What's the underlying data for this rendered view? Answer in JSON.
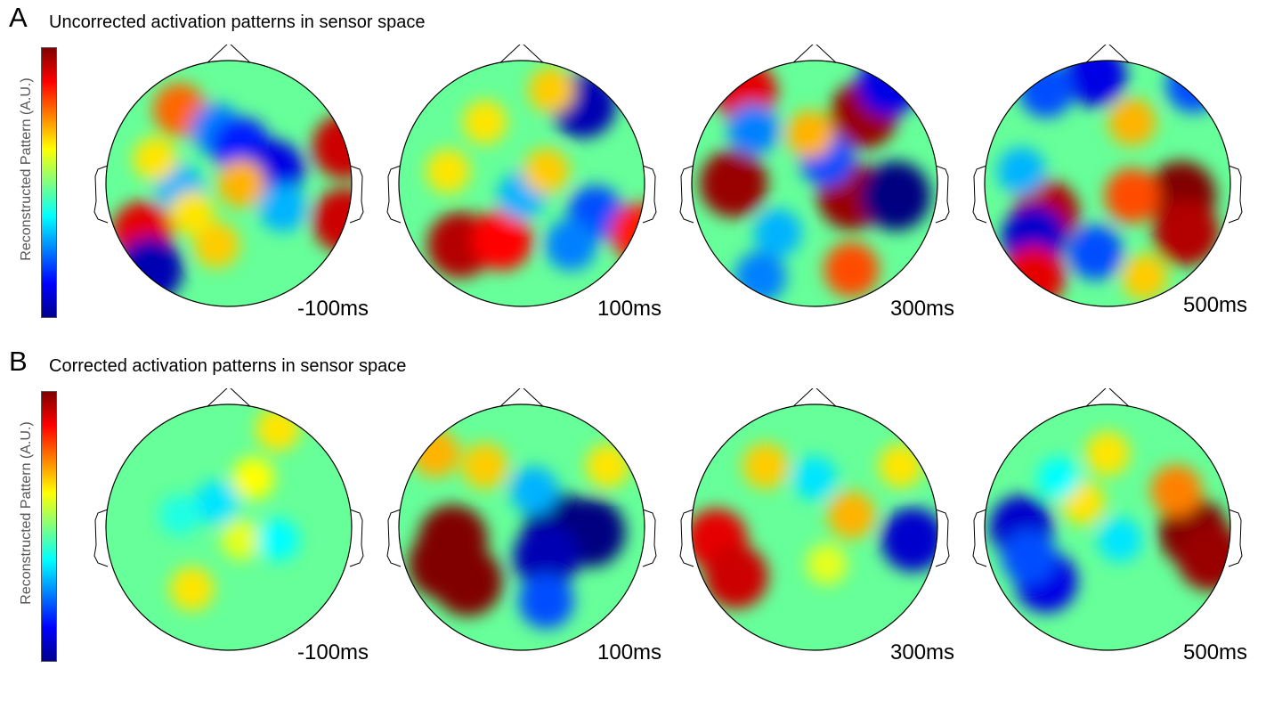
{
  "panels": [
    {
      "letter": "A",
      "title": "Uncorrected activation patterns in sensor space",
      "colorbar_label": "Reconstructed Pattern (A.U.)",
      "maps": [
        {
          "time": "-100ms",
          "blobs": [
            {
              "u": 0.3,
              "v": 0.2,
              "v2": 0.55
            },
            {
              "u": 0.45,
              "v": 0.28,
              "v2": -0.5
            },
            {
              "u": 0.55,
              "v": 0.35,
              "v2": -0.7
            },
            {
              "u": 0.68,
              "v": 0.45,
              "v2": -0.8
            },
            {
              "u": 0.3,
              "v": 0.52,
              "v2": -0.4
            },
            {
              "u": 0.2,
              "v": 0.4,
              "v2": 0.3
            },
            {
              "u": 0.55,
              "v": 0.5,
              "v2": 0.4
            },
            {
              "u": 0.97,
              "v": 0.35,
              "v2": 0.85
            },
            {
              "u": 0.97,
              "v": 0.65,
              "v2": 0.85
            },
            {
              "u": 0.15,
              "v": 0.7,
              "v2": 0.8
            },
            {
              "u": 0.18,
              "v": 0.85,
              "v2": -0.9
            },
            {
              "u": 0.45,
              "v": 0.75,
              "v2": 0.35
            },
            {
              "u": 0.35,
              "v": 0.62,
              "v2": 0.3
            },
            {
              "u": 0.72,
              "v": 0.6,
              "v2": -0.4
            }
          ]
        },
        {
          "time": "100ms",
          "blobs": [
            {
              "u": 0.75,
              "v": 0.18,
              "v2": -0.9
            },
            {
              "u": 0.62,
              "v": 0.12,
              "v2": 0.35
            },
            {
              "u": 0.35,
              "v": 0.25,
              "v2": 0.3
            },
            {
              "u": 0.25,
              "v": 0.75,
              "v2": 0.9
            },
            {
              "u": 0.42,
              "v": 0.73,
              "v2": 0.75
            },
            {
              "u": 0.8,
              "v": 0.62,
              "v2": -0.6
            },
            {
              "u": 0.7,
              "v": 0.75,
              "v2": -0.5
            },
            {
              "u": 0.5,
              "v": 0.55,
              "v2": -0.4
            },
            {
              "u": 0.6,
              "v": 0.45,
              "v2": 0.35
            },
            {
              "u": 0.98,
              "v": 0.7,
              "v2": 0.7
            },
            {
              "u": 0.2,
              "v": 0.45,
              "v2": 0.3
            }
          ]
        },
        {
          "time": "300ms",
          "blobs": [
            {
              "u": 0.22,
              "v": 0.13,
              "v2": 0.8
            },
            {
              "u": 0.7,
              "v": 0.22,
              "v2": 0.95
            },
            {
              "u": 0.8,
              "v": 0.1,
              "v2": -0.8
            },
            {
              "u": 0.17,
              "v": 0.5,
              "v2": 0.95
            },
            {
              "u": 0.65,
              "v": 0.55,
              "v2": 0.95
            },
            {
              "u": 0.83,
              "v": 0.55,
              "v2": -1.0
            },
            {
              "u": 0.25,
              "v": 0.28,
              "v2": -0.5
            },
            {
              "u": 0.55,
              "v": 0.4,
              "v2": -0.6
            },
            {
              "u": 0.35,
              "v": 0.7,
              "v2": -0.4
            },
            {
              "u": 0.65,
              "v": 0.85,
              "v2": 0.6
            },
            {
              "u": 0.28,
              "v": 0.88,
              "v2": -0.5
            },
            {
              "u": 0.48,
              "v": 0.3,
              "v2": 0.4
            }
          ]
        },
        {
          "time": "500ms",
          "blobs": [
            {
              "u": 0.45,
              "v": 0.06,
              "v2": -0.8
            },
            {
              "u": 0.25,
              "v": 0.12,
              "v2": -0.6
            },
            {
              "u": 0.85,
              "v": 0.1,
              "v2": -0.6
            },
            {
              "u": 0.8,
              "v": 0.55,
              "v2": 1.0
            },
            {
              "u": 0.82,
              "v": 0.7,
              "v2": 0.9
            },
            {
              "u": 0.25,
              "v": 0.62,
              "v2": 0.9
            },
            {
              "u": 0.2,
              "v": 0.72,
              "v2": -0.85
            },
            {
              "u": 0.45,
              "v": 0.78,
              "v2": -0.6
            },
            {
              "u": 0.6,
              "v": 0.55,
              "v2": 0.6
            },
            {
              "u": 0.2,
              "v": 0.88,
              "v2": 0.8
            },
            {
              "u": 0.6,
              "v": 0.25,
              "v2": 0.4
            },
            {
              "u": 0.15,
              "v": 0.45,
              "v2": -0.4
            },
            {
              "u": 0.65,
              "v": 0.88,
              "v2": 0.35
            }
          ]
        }
      ]
    },
    {
      "letter": "B",
      "title": "Corrected activation patterns in sensor space",
      "colorbar_label": "Reconstructed Pattern (A.U.)",
      "maps": [
        {
          "time": "-100ms",
          "blobs": [
            {
              "u": 0.45,
              "v": 0.4,
              "v2": -0.3
            },
            {
              "u": 0.6,
              "v": 0.3,
              "v2": 0.25
            },
            {
              "u": 0.55,
              "v": 0.55,
              "v2": 0.2
            },
            {
              "u": 0.7,
              "v": 0.55,
              "v2": -0.25
            },
            {
              "u": 0.35,
              "v": 0.75,
              "v2": 0.3
            },
            {
              "u": 0.7,
              "v": 0.1,
              "v2": 0.3
            },
            {
              "u": 0.3,
              "v": 0.45,
              "v2": -0.2
            }
          ]
        },
        {
          "time": "100ms",
          "blobs": [
            {
              "u": 0.22,
              "v": 0.55,
              "v2": 1.0
            },
            {
              "u": 0.28,
              "v": 0.72,
              "v2": 1.0
            },
            {
              "u": 0.18,
              "v": 0.65,
              "v2": 1.0
            },
            {
              "u": 0.65,
              "v": 0.5,
              "v2": -1.0
            },
            {
              "u": 0.78,
              "v": 0.52,
              "v2": -1.0
            },
            {
              "u": 0.6,
              "v": 0.62,
              "v2": -0.9
            },
            {
              "u": 0.35,
              "v": 0.25,
              "v2": 0.35
            },
            {
              "u": 0.15,
              "v": 0.2,
              "v2": 0.4
            },
            {
              "u": 0.85,
              "v": 0.25,
              "v2": 0.3
            },
            {
              "u": 0.55,
              "v": 0.35,
              "v2": -0.4
            },
            {
              "u": 0.6,
              "v": 0.8,
              "v2": -0.6
            }
          ]
        },
        {
          "time": "300ms",
          "blobs": [
            {
              "u": 0.1,
              "v": 0.55,
              "v2": 0.8
            },
            {
              "u": 0.18,
              "v": 0.7,
              "v2": 0.85
            },
            {
              "u": 0.9,
              "v": 0.55,
              "v2": -0.85
            },
            {
              "u": 0.3,
              "v": 0.25,
              "v2": 0.35
            },
            {
              "u": 0.65,
              "v": 0.45,
              "v2": 0.4
            },
            {
              "u": 0.5,
              "v": 0.3,
              "v2": -0.3
            },
            {
              "u": 0.55,
              "v": 0.65,
              "v2": 0.2
            },
            {
              "u": 0.85,
              "v": 0.25,
              "v2": 0.3
            }
          ]
        },
        {
          "time": "500ms",
          "blobs": [
            {
              "u": 0.85,
              "v": 0.52,
              "v2": 1.0
            },
            {
              "u": 0.92,
              "v": 0.62,
              "v2": 0.95
            },
            {
              "u": 0.78,
              "v": 0.35,
              "v2": 0.5
            },
            {
              "u": 0.15,
              "v": 0.5,
              "v2": -0.85
            },
            {
              "u": 0.25,
              "v": 0.72,
              "v2": -0.8
            },
            {
              "u": 0.18,
              "v": 0.62,
              "v2": -0.6
            },
            {
              "u": 0.4,
              "v": 0.4,
              "v2": 0.3
            },
            {
              "u": 0.55,
              "v": 0.55,
              "v2": -0.3
            },
            {
              "u": 0.5,
              "v": 0.2,
              "v2": 0.3
            },
            {
              "u": 0.3,
              "v": 0.3,
              "v2": -0.25
            }
          ]
        }
      ]
    }
  ]
}
